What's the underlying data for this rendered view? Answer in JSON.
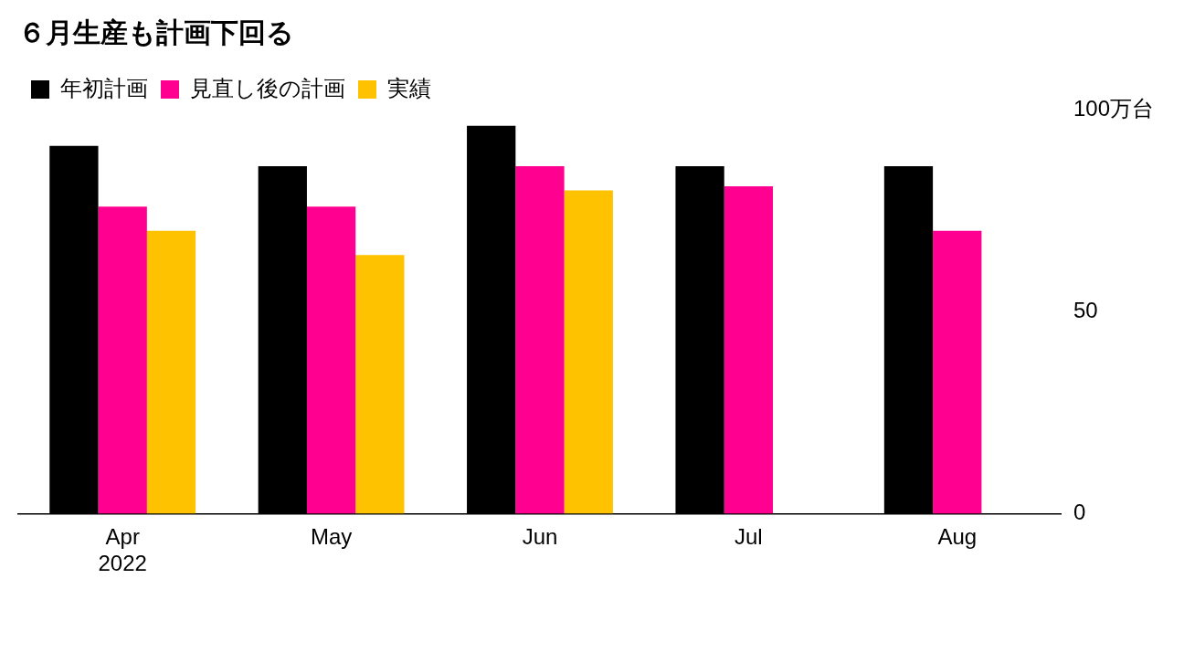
{
  "chart_data": {
    "type": "bar",
    "title": "６月生産も計画下回る",
    "categories": [
      "Apr\n2022",
      "May",
      "Jun",
      "Jul",
      "Aug"
    ],
    "series": [
      {
        "name": "年初計画",
        "color": "#000000",
        "values": [
          91,
          86,
          96,
          86,
          86
        ]
      },
      {
        "name": "見直し後の計画",
        "color": "#ff0090",
        "values": [
          76,
          76,
          86,
          81,
          70
        ]
      },
      {
        "name": "実績",
        "color": "#ffc200",
        "values": [
          70,
          64,
          80,
          0,
          0
        ]
      }
    ],
    "ylim": [
      0,
      100
    ],
    "yticks": [
      0,
      50,
      {
        "value": 100,
        "label": "100万台"
      }
    ],
    "grid": false,
    "legend": "top left"
  }
}
